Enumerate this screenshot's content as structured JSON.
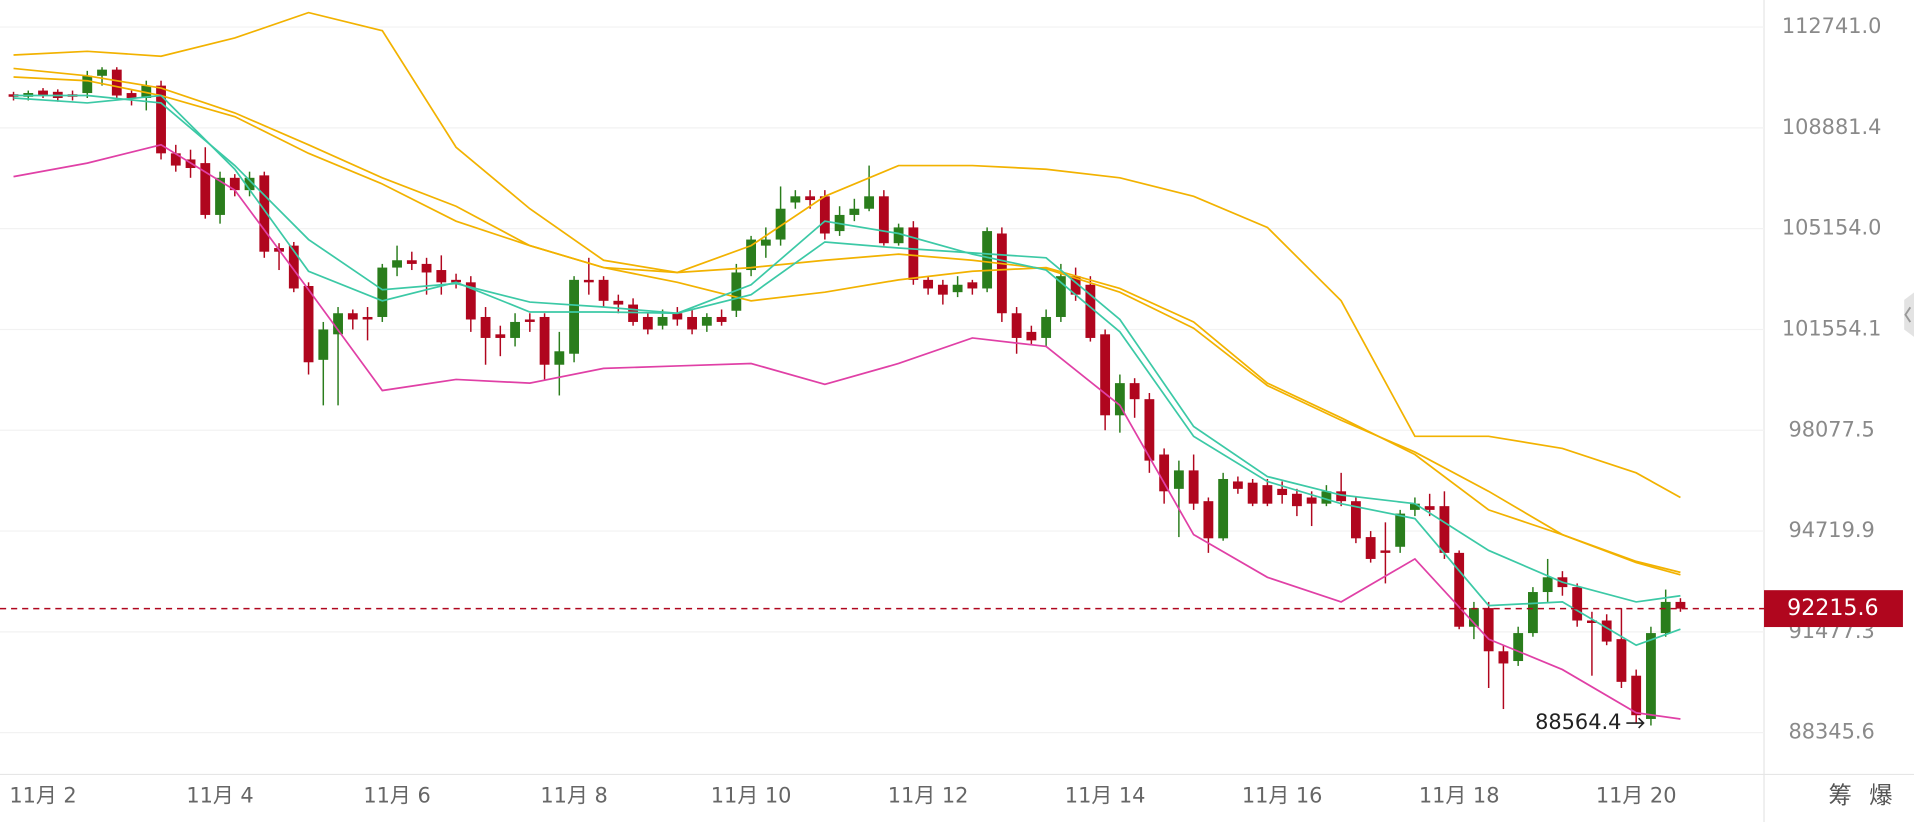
{
  "chart_data": {
    "type": "candlestick",
    "categories": [
      null,
      null,
      "11月 2",
      null,
      null,
      null,
      null,
      null,
      null,
      null,
      null,
      null,
      null,
      null,
      "11月 4",
      null,
      null,
      null,
      null,
      null,
      null,
      null,
      null,
      null,
      null,
      null,
      "11月 6",
      null,
      null,
      null,
      null,
      null,
      null,
      null,
      null,
      null,
      null,
      null,
      "11月 8",
      null,
      null,
      null,
      null,
      null,
      null,
      null,
      null,
      null,
      null,
      null,
      "11月 10",
      null,
      null,
      null,
      null,
      null,
      null,
      null,
      null,
      null,
      null,
      null,
      "11月 12",
      null,
      null,
      null,
      null,
      null,
      null,
      null,
      null,
      null,
      null,
      null,
      "11月 14",
      null,
      null,
      null,
      null,
      null,
      null,
      null,
      null,
      null,
      null,
      null,
      "11月 16",
      null,
      null,
      null,
      null,
      null,
      null,
      null,
      null,
      null,
      null,
      null,
      "11月 18",
      null,
      null,
      null,
      null,
      null,
      null,
      null,
      null,
      null,
      null,
      null,
      "11月 20",
      null,
      null,
      null
    ],
    "open": [
      110152,
      110058,
      110293,
      110246,
      110152,
      110199,
      110858,
      111094,
      110199,
      110011,
      110482,
      107927,
      107699,
      107563,
      105654,
      107018,
      106563,
      107108,
      104452,
      104539,
      103091,
      100494,
      101384,
      102125,
      101993,
      101993,
      103749,
      104012,
      103881,
      103661,
      103310,
      103222,
      101993,
      101384,
      101257,
      101905,
      101993,
      100324,
      100706,
      103310,
      103310,
      102564,
      102432,
      101993,
      101686,
      102125,
      101993,
      101686,
      101993,
      102213,
      103661,
      104539,
      104759,
      106109,
      106336,
      106336,
      105066,
      105654,
      105881,
      106336,
      104627,
      105199,
      103310,
      103135,
      102871,
      103222,
      103003,
      104978,
      102125,
      101469,
      101257,
      101993,
      103442,
      103135,
      101384,
      98586,
      99688,
      99137,
      97259,
      96112,
      96727,
      95703,
      94483,
      96358,
      96317,
      96235,
      96112,
      95948,
      95826,
      95621,
      96030,
      95703,
      94523,
      94088,
      94207,
      95416,
      95539,
      95539,
      94009,
      91640,
      92232,
      90866,
      90560,
      91439,
      92745,
      93219,
      92903,
      91837,
      91837,
      91248,
      90102,
      88765,
      91439,
      92429
    ],
    "high": [
      110246,
      110293,
      110388,
      110340,
      110293,
      111047,
      111188,
      111188,
      110293,
      110670,
      110670,
      108245,
      108063,
      108154,
      107245,
      107154,
      107245,
      107245,
      104627,
      104671,
      103222,
      101818,
      102344,
      102257,
      102344,
      103881,
      104539,
      104320,
      104100,
      104188,
      103530,
      103442,
      102344,
      101686,
      102125,
      102125,
      102125,
      101469,
      103442,
      104100,
      103442,
      102783,
      102652,
      102125,
      102257,
      102344,
      102257,
      102125,
      102257,
      103881,
      104891,
      105199,
      106699,
      106563,
      106563,
      106563,
      105972,
      106245,
      107472,
      106563,
      105336,
      105427,
      103442,
      103310,
      103442,
      103310,
      105199,
      105199,
      102344,
      101686,
      102257,
      103881,
      103749,
      103442,
      101554,
      99985,
      99858,
      99349,
      97464,
      97054,
      97259,
      95826,
      96645,
      96522,
      96440,
      96440,
      96358,
      96112,
      96030,
      96235,
      96645,
      95826,
      94720,
      95006,
      95416,
      95826,
      95948,
      96030,
      94088,
      92429,
      92429,
      91057,
      91640,
      92903,
      93812,
      93417,
      93022,
      92114,
      92035,
      92232,
      90293,
      91640,
      92824,
      92548
    ],
    "low": [
      109917,
      109917,
      110011,
      109870,
      109917,
      110011,
      110482,
      110011,
      109728,
      109540,
      107699,
      107245,
      107018,
      105518,
      105336,
      106336,
      106336,
      104100,
      103661,
      102871,
      99985,
      98925,
      98925,
      101554,
      101172,
      101818,
      103442,
      103661,
      102783,
      102783,
      103003,
      101469,
      100324,
      100621,
      100960,
      101469,
      99773,
      99264,
      100409,
      102783,
      102344,
      102125,
      101686,
      101384,
      101554,
      101686,
      101384,
      101469,
      101686,
      101993,
      103442,
      104100,
      104539,
      105881,
      105881,
      104759,
      104891,
      105427,
      105790,
      104539,
      104539,
      103135,
      102783,
      102432,
      102696,
      102783,
      102871,
      101818,
      100706,
      101045,
      100960,
      101818,
      102564,
      101130,
      98078,
      97996,
      98501,
      96645,
      95621,
      94523,
      95416,
      94009,
      94404,
      95948,
      95539,
      95539,
      95621,
      95211,
      94884,
      95539,
      95539,
      94325,
      93693,
      93022,
      94009,
      95211,
      95211,
      93812,
      91561,
      91248,
      89720,
      89070,
      90407,
      91324,
      92429,
      92627,
      91640,
      90102,
      91057,
      89720,
      88650,
      88564.4,
      91324,
      92114
    ],
    "close": [
      110058,
      110199,
      110105,
      110011,
      110058,
      110858,
      111094,
      110105,
      110011,
      110482,
      107927,
      107472,
      107381,
      105654,
      107018,
      106563,
      107018,
      104320,
      104320,
      103003,
      100409,
      101554,
      102125,
      101905,
      101905,
      103749,
      104012,
      103881,
      103574,
      103222,
      103222,
      101905,
      101257,
      101257,
      101818,
      101818,
      100324,
      100791,
      103310,
      103222,
      102564,
      102432,
      101818,
      101554,
      101993,
      101905,
      101554,
      101993,
      101818,
      103574,
      104759,
      104759,
      105881,
      106336,
      106199,
      104978,
      105654,
      105881,
      106336,
      104627,
      105199,
      103310,
      103003,
      102783,
      103135,
      103003,
      105066,
      102125,
      101257,
      101172,
      101993,
      103442,
      102783,
      101257,
      98586,
      99688,
      99137,
      97054,
      96030,
      96727,
      95621,
      94483,
      96440,
      96112,
      95621,
      95621,
      95907,
      95539,
      95621,
      96030,
      95703,
      94483,
      93812,
      94009,
      95293,
      95621,
      95416,
      94009,
      91640,
      92232,
      90866,
      90484,
      91439,
      92745,
      93219,
      92903,
      91837,
      91758,
      91171,
      89911,
      88880,
      91439,
      92429,
      92215.6
    ],
    "up_color": "#2a7d1c",
    "down_color": "#b0061e",
    "lines": [
      {
        "color": "#f2b200",
        "x": [
          0,
          5,
          10,
          15,
          20,
          25,
          30,
          35,
          40,
          45,
          50,
          55,
          60,
          65,
          70,
          75,
          80,
          85,
          90,
          95,
          100,
          105,
          110,
          113
        ],
        "values": [
          111658,
          111800,
          111611,
          112317,
          113306,
          112600,
          108154,
          105881,
          104012,
          103574,
          104539,
          106336,
          107472,
          107472,
          107336,
          107018,
          106336,
          105199,
          102564,
          97873,
          97873,
          97464,
          96645,
          95826
        ]
      },
      {
        "color": "#f2b200",
        "x": [
          0,
          5,
          10,
          15,
          20,
          25,
          30,
          35,
          40,
          45,
          50,
          55,
          60,
          65,
          70,
          75,
          80,
          85,
          90,
          95,
          100,
          105,
          110,
          113
        ],
        "values": [
          110811,
          110670,
          110105,
          109305,
          107927,
          106790,
          105427,
          104539,
          103749,
          103222,
          102564,
          102871,
          103310,
          103618,
          103749,
          103003,
          101818,
          99688,
          98501,
          97259,
          95416,
          94602,
          93733,
          93377
        ]
      },
      {
        "color": "#f2b200",
        "x": [
          0,
          5,
          10,
          15,
          20,
          25,
          30,
          35,
          40,
          45,
          50,
          55,
          60,
          65,
          70,
          75,
          80,
          85,
          90,
          95,
          100,
          105,
          110,
          113
        ],
        "values": [
          111141,
          110858,
          110388,
          109446,
          108245,
          107018,
          105972,
          104539,
          103749,
          103574,
          103749,
          104012,
          104232,
          104012,
          103705,
          102871,
          101598,
          99603,
          98417,
          97341,
          96030,
          94602,
          93693,
          93298
        ]
      },
      {
        "color": "#3cc9a6",
        "x": [
          0,
          5,
          10,
          15,
          20,
          25,
          30,
          35,
          40,
          45,
          50,
          55,
          60,
          65,
          70,
          75,
          80,
          85,
          90,
          95,
          100,
          105,
          110,
          113
        ],
        "values": [
          110011,
          109823,
          110105,
          107336,
          103618,
          102564,
          103222,
          102169,
          102169,
          102125,
          103135,
          105427,
          104978,
          104232,
          103661,
          101469,
          97873,
          96358,
          95621,
          95129,
          92311,
          92429,
          91057,
          91561
        ]
      },
      {
        "color": "#3cc9a6",
        "x": [
          0,
          5,
          10,
          15,
          20,
          25,
          30,
          35,
          40,
          45,
          50,
          55,
          60,
          65,
          70,
          75,
          80,
          85,
          90,
          95,
          100,
          105,
          110,
          113
        ],
        "values": [
          110105,
          110105,
          109823,
          107472,
          104759,
          102959,
          103179,
          102520,
          102344,
          102125,
          102783,
          104671,
          104452,
          104276,
          104100,
          101905,
          98205,
          96522,
          95907,
          95621,
          94088,
          93061,
          92429,
          92627
        ]
      },
      {
        "color": "#e040a6",
        "x": [
          0,
          5,
          10,
          15,
          20,
          25,
          30,
          35,
          40,
          45,
          50,
          55,
          60,
          65,
          70,
          75,
          80,
          85,
          90,
          95,
          100,
          105,
          110,
          113
        ],
        "values": [
          107063,
          107563,
          108245,
          106563,
          102959,
          99434,
          99815,
          99688,
          100197,
          100282,
          100367,
          99646,
          100367,
          101257,
          100960,
          98925,
          94602,
          93219,
          92429,
          93812,
          91248,
          90293,
          88956,
          88765
        ]
      }
    ],
    "ylim": [
      87080,
      113800
    ],
    "log_scale": true,
    "yticks": [
      {
        "value": 112741,
        "label": "112741.0"
      },
      108881.4,
      {
        "value": 105154,
        "label": "105154.0"
      },
      101554.1,
      98077.5,
      94719.9,
      91477.3,
      88345.6
    ],
    "grid": true,
    "last_price": 92215.6,
    "last_price_color": "#b0061e",
    "low_marker": 88564.4,
    "buttons": [
      "筹",
      "爆"
    ]
  }
}
